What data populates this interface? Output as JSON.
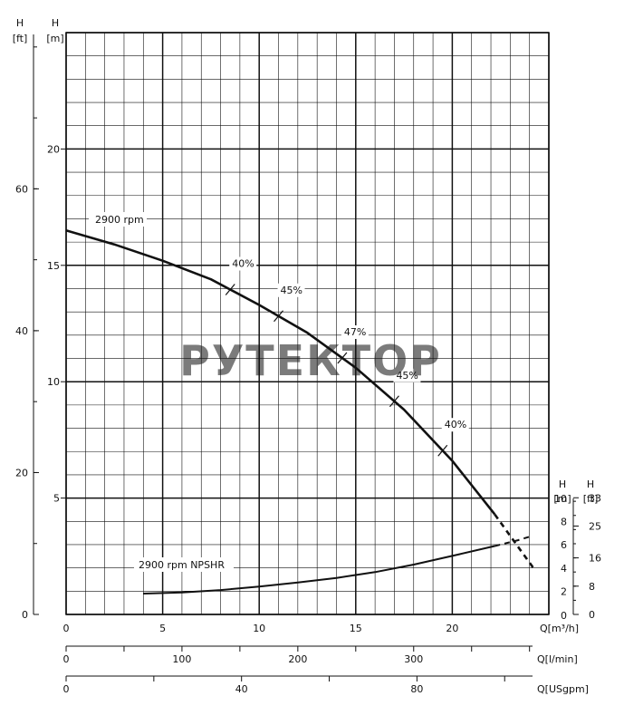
{
  "chart_data": {
    "type": "line",
    "watermark": "РУТЕКТОР",
    "x_primary": {
      "label": "Q[m³/h]",
      "range": [
        0,
        25
      ],
      "ticks": [
        0,
        5,
        10,
        15,
        20
      ]
    },
    "x_lmin": {
      "label": "Q[l/min]",
      "ticks": [
        0,
        100,
        200,
        300
      ]
    },
    "x_usgpm": {
      "label": "Q[USgpm]",
      "ticks": [
        0,
        40,
        80
      ]
    },
    "y_head_m": {
      "label_top": "H",
      "label_unit": "[m]",
      "range": [
        0,
        25
      ],
      "ticks": [
        5,
        10,
        15,
        20
      ]
    },
    "y_head_ft": {
      "label_top": "H",
      "label_unit": "[ft]",
      "ticks": [
        0,
        20,
        40,
        60
      ]
    },
    "y_npsh_m": {
      "label_top": "H",
      "label_unit": "[m]",
      "range": [
        0,
        10
      ],
      "ticks": [
        0,
        2,
        4,
        6,
        8,
        10
      ]
    },
    "y_npsh_ft": {
      "label_top": "H",
      "label_unit": "[ft]",
      "ticks": [
        0,
        8,
        16,
        25,
        33
      ]
    },
    "series": [
      {
        "name": "2900 rpm",
        "kind": "head",
        "x": [
          0,
          2.5,
          5,
          7.5,
          10,
          12.5,
          15,
          17.5,
          20,
          22.2
        ],
        "y": [
          16.5,
          15.9,
          15.2,
          14.4,
          13.3,
          12.1,
          10.6,
          8.8,
          6.6,
          4.3
        ],
        "dashed_x": [
          22.2,
          23.5,
          24.2
        ],
        "dashed_y": [
          4.3,
          2.8,
          2.0
        ]
      },
      {
        "name": "2900 rpm NPSHR",
        "kind": "npshr",
        "x": [
          4,
          6,
          8,
          10,
          12,
          14,
          16,
          18,
          20,
          22.2
        ],
        "y": [
          1.8,
          1.9,
          2.1,
          2.4,
          2.75,
          3.15,
          3.65,
          4.3,
          5.05,
          5.9
        ],
        "dashed_x": [
          22.2,
          23.4,
          24.0
        ],
        "dashed_y": [
          5.9,
          6.4,
          6.7
        ]
      }
    ],
    "efficiency_marks": [
      {
        "label": "40%",
        "x": 8.5
      },
      {
        "label": "45%",
        "x": 11.0
      },
      {
        "label": "47%",
        "x": 14.3
      },
      {
        "label": "45%",
        "x": 17.0
      },
      {
        "label": "40%",
        "x": 19.5
      }
    ]
  }
}
